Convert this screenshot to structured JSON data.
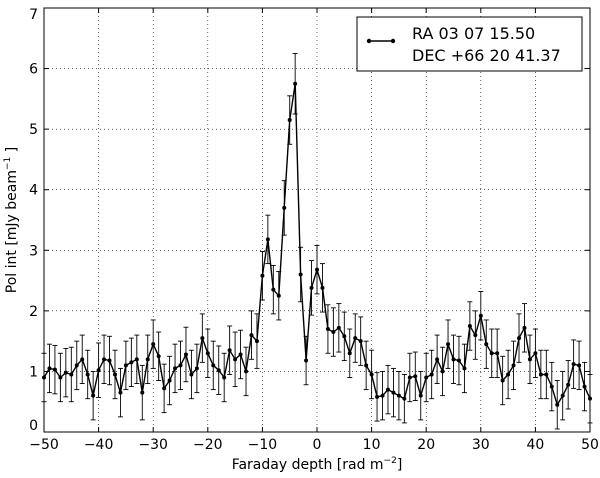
{
  "chart_data": {
    "type": "line",
    "title": "",
    "xlabel": "Faraday depth [rad m",
    "xlabel_sup": "−2",
    "xlabel_end": "]",
    "ylabel": "Pol int [mJy beam",
    "ylabel_sup": "−1",
    "ylabel_end": " ]",
    "xlim": [
      -50,
      50
    ],
    "ylim": [
      0,
      7
    ],
    "xticks": [
      -50,
      -40,
      -30,
      -20,
      -10,
      0,
      10,
      20,
      30,
      40,
      50
    ],
    "xtick_labels": [
      "−50",
      "−40",
      "−30",
      "−20",
      "−10",
      "0",
      "10",
      "20",
      "30",
      "40",
      "50"
    ],
    "yticks": [
      0,
      1,
      2,
      3,
      4,
      5,
      6,
      7
    ],
    "ytick_labels": [
      "0",
      "1",
      "2",
      "3",
      "4",
      "5",
      "6",
      "7"
    ],
    "grid": true,
    "legend": {
      "placement": "top-right",
      "lines": [
        "RA 03 07 15.50",
        "DEC +66 20 41.37"
      ]
    },
    "series": [
      {
        "color": "#000000",
        "x": [
          -50,
          -49,
          -48,
          -47,
          -46,
          -45,
          -44,
          -43,
          -42,
          -41,
          -40,
          -39,
          -38,
          -37,
          -36,
          -35,
          -34,
          -33,
          -32,
          -31,
          -30,
          -29,
          -28,
          -27,
          -26,
          -25,
          -24,
          -23,
          -22,
          -21,
          -20,
          -19,
          -18,
          -17,
          -16,
          -15,
          -14,
          -13,
          -12,
          -11,
          -10,
          -9,
          -8,
          -7,
          -6,
          -5,
          -4,
          -3,
          -2,
          -1,
          0,
          1,
          2,
          3,
          4,
          5,
          6,
          7,
          8,
          9,
          10,
          11,
          12,
          13,
          14,
          15,
          16,
          17,
          18,
          19,
          20,
          21,
          22,
          23,
          24,
          25,
          26,
          27,
          28,
          29,
          30,
          31,
          32,
          33,
          34,
          35,
          36,
          37,
          38,
          39,
          40,
          41,
          42,
          43,
          44,
          45,
          46,
          47,
          48,
          49,
          50
        ],
        "y": [
          0.9,
          1.05,
          1.03,
          0.9,
          0.98,
          0.95,
          1.1,
          1.2,
          0.95,
          0.6,
          1.02,
          1.2,
          1.18,
          0.95,
          0.65,
          1.1,
          1.15,
          1.2,
          0.65,
          1.2,
          1.45,
          1.25,
          0.72,
          0.85,
          1.05,
          1.1,
          1.28,
          0.95,
          1.05,
          1.55,
          1.3,
          1.1,
          1.02,
          0.9,
          1.35,
          1.2,
          1.28,
          1.0,
          1.6,
          1.5,
          2.58,
          3.18,
          2.35,
          2.25,
          3.7,
          5.15,
          5.75,
          2.6,
          1.18,
          2.38,
          2.68,
          2.38,
          1.7,
          1.65,
          1.72,
          1.58,
          1.3,
          1.55,
          1.5,
          1.1,
          0.95,
          0.58,
          0.6,
          0.7,
          0.65,
          0.6,
          0.55,
          0.9,
          0.92,
          0.6,
          0.9,
          0.95,
          1.2,
          1.0,
          1.45,
          1.2,
          1.18,
          1.05,
          1.75,
          1.6,
          1.92,
          1.45,
          1.3,
          1.3,
          0.85,
          0.95,
          1.1,
          1.55,
          1.72,
          1.2,
          1.3,
          0.95,
          0.95,
          0.75,
          0.45,
          0.6,
          0.78,
          1.12,
          1.1,
          0.75,
          0.55
        ],
        "err": [
          0.4,
          0.4,
          0.4,
          0.4,
          0.4,
          0.45,
          0.4,
          0.4,
          0.4,
          0.4,
          0.45,
          0.4,
          0.4,
          0.4,
          0.4,
          0.4,
          0.4,
          0.4,
          0.45,
          0.4,
          0.4,
          0.4,
          0.4,
          0.4,
          0.4,
          0.4,
          0.45,
          0.4,
          0.4,
          0.4,
          0.4,
          0.4,
          0.4,
          0.4,
          0.4,
          0.45,
          0.4,
          0.4,
          0.4,
          0.45,
          0.4,
          0.4,
          0.4,
          0.4,
          0.45,
          0.4,
          0.5,
          0.45,
          0.4,
          0.45,
          0.4,
          0.4,
          0.4,
          0.4,
          0.4,
          0.4,
          0.4,
          0.4,
          0.4,
          0.4,
          0.4,
          0.4,
          0.4,
          0.4,
          0.4,
          0.4,
          0.4,
          0.4,
          0.4,
          0.4,
          0.4,
          0.4,
          0.4,
          0.4,
          0.4,
          0.4,
          0.4,
          0.4,
          0.4,
          0.4,
          0.4,
          0.4,
          0.4,
          0.4,
          0.4,
          0.4,
          0.4,
          0.4,
          0.4,
          0.4,
          0.4,
          0.4,
          0.4,
          0.4,
          0.4,
          0.4,
          0.4,
          0.4,
          0.4,
          0.4,
          0.4
        ]
      }
    ]
  }
}
